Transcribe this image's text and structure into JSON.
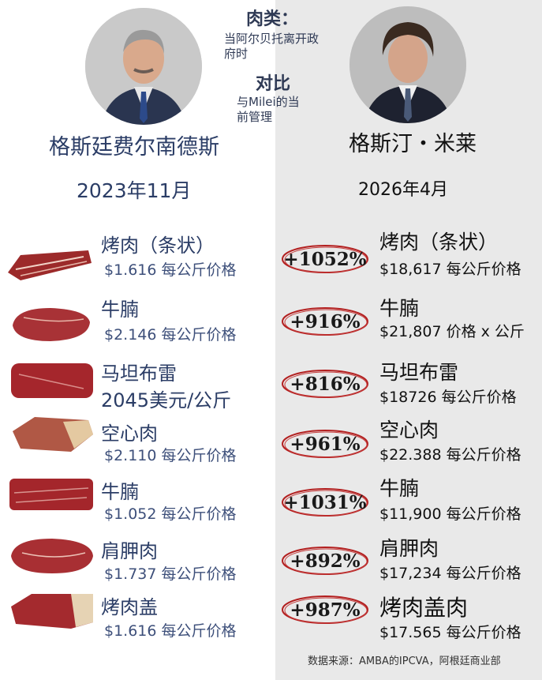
{
  "header": {
    "title1": "肉类：",
    "sub1": [
      "当阿尔贝托离开政",
      "府时"
    ],
    "title2": "对比",
    "sub2": [
      "与Milei的当",
      "前管理"
    ]
  },
  "left": {
    "leader": "格斯廷费尔南德斯",
    "date": "2023年11月",
    "items": [
      {
        "name": "烤肉（条状）",
        "price": "$1.616 每公斤价格"
      },
      {
        "name": "牛腩",
        "price": "$2.146 每公斤价格"
      },
      {
        "name": "马坦布雷",
        "price": "2045美元/公斤"
      },
      {
        "name": "空心肉",
        "price": "$2.110 每公斤价格"
      },
      {
        "name": "牛腩",
        "price": "$1.052 每公斤价格"
      },
      {
        "name": "肩胛肉",
        "price": "$1.737 每公斤价格"
      },
      {
        "name": "烤肉盖",
        "price": "$1.616 每公斤价格"
      }
    ]
  },
  "right": {
    "leader": "格斯汀・米莱",
    "date": "2026年4月",
    "items": [
      {
        "pct": "+1052%",
        "name": "烤肉（条状）",
        "price": "$18,617 每公斤价格"
      },
      {
        "pct": "+916%",
        "name": "牛腩",
        "price": "$21,807 价格 x 公斤"
      },
      {
        "pct": "+816%",
        "name": "马坦布雷",
        "price": "$18726 每公斤价格"
      },
      {
        "pct": "+961%",
        "name": "空心肉",
        "price": "$22.388 每公斤价格"
      },
      {
        "pct": "+1031%",
        "name": "牛腩",
        "price": "$11,900 每公斤价格"
      },
      {
        "pct": "+892%",
        "name": "肩胛肉",
        "price": "$17,234 每公斤价格"
      },
      {
        "pct": "+987%",
        "name": "烤肉盖肉",
        "price": "$17.565 每公斤价格"
      }
    ]
  },
  "source": "数据来源：AMBA的IPCVA，阿根廷商业部",
  "colors": {
    "accent_red": "#b32020",
    "navy": "#2b3d66",
    "right_bg": "#e9e9e9"
  }
}
